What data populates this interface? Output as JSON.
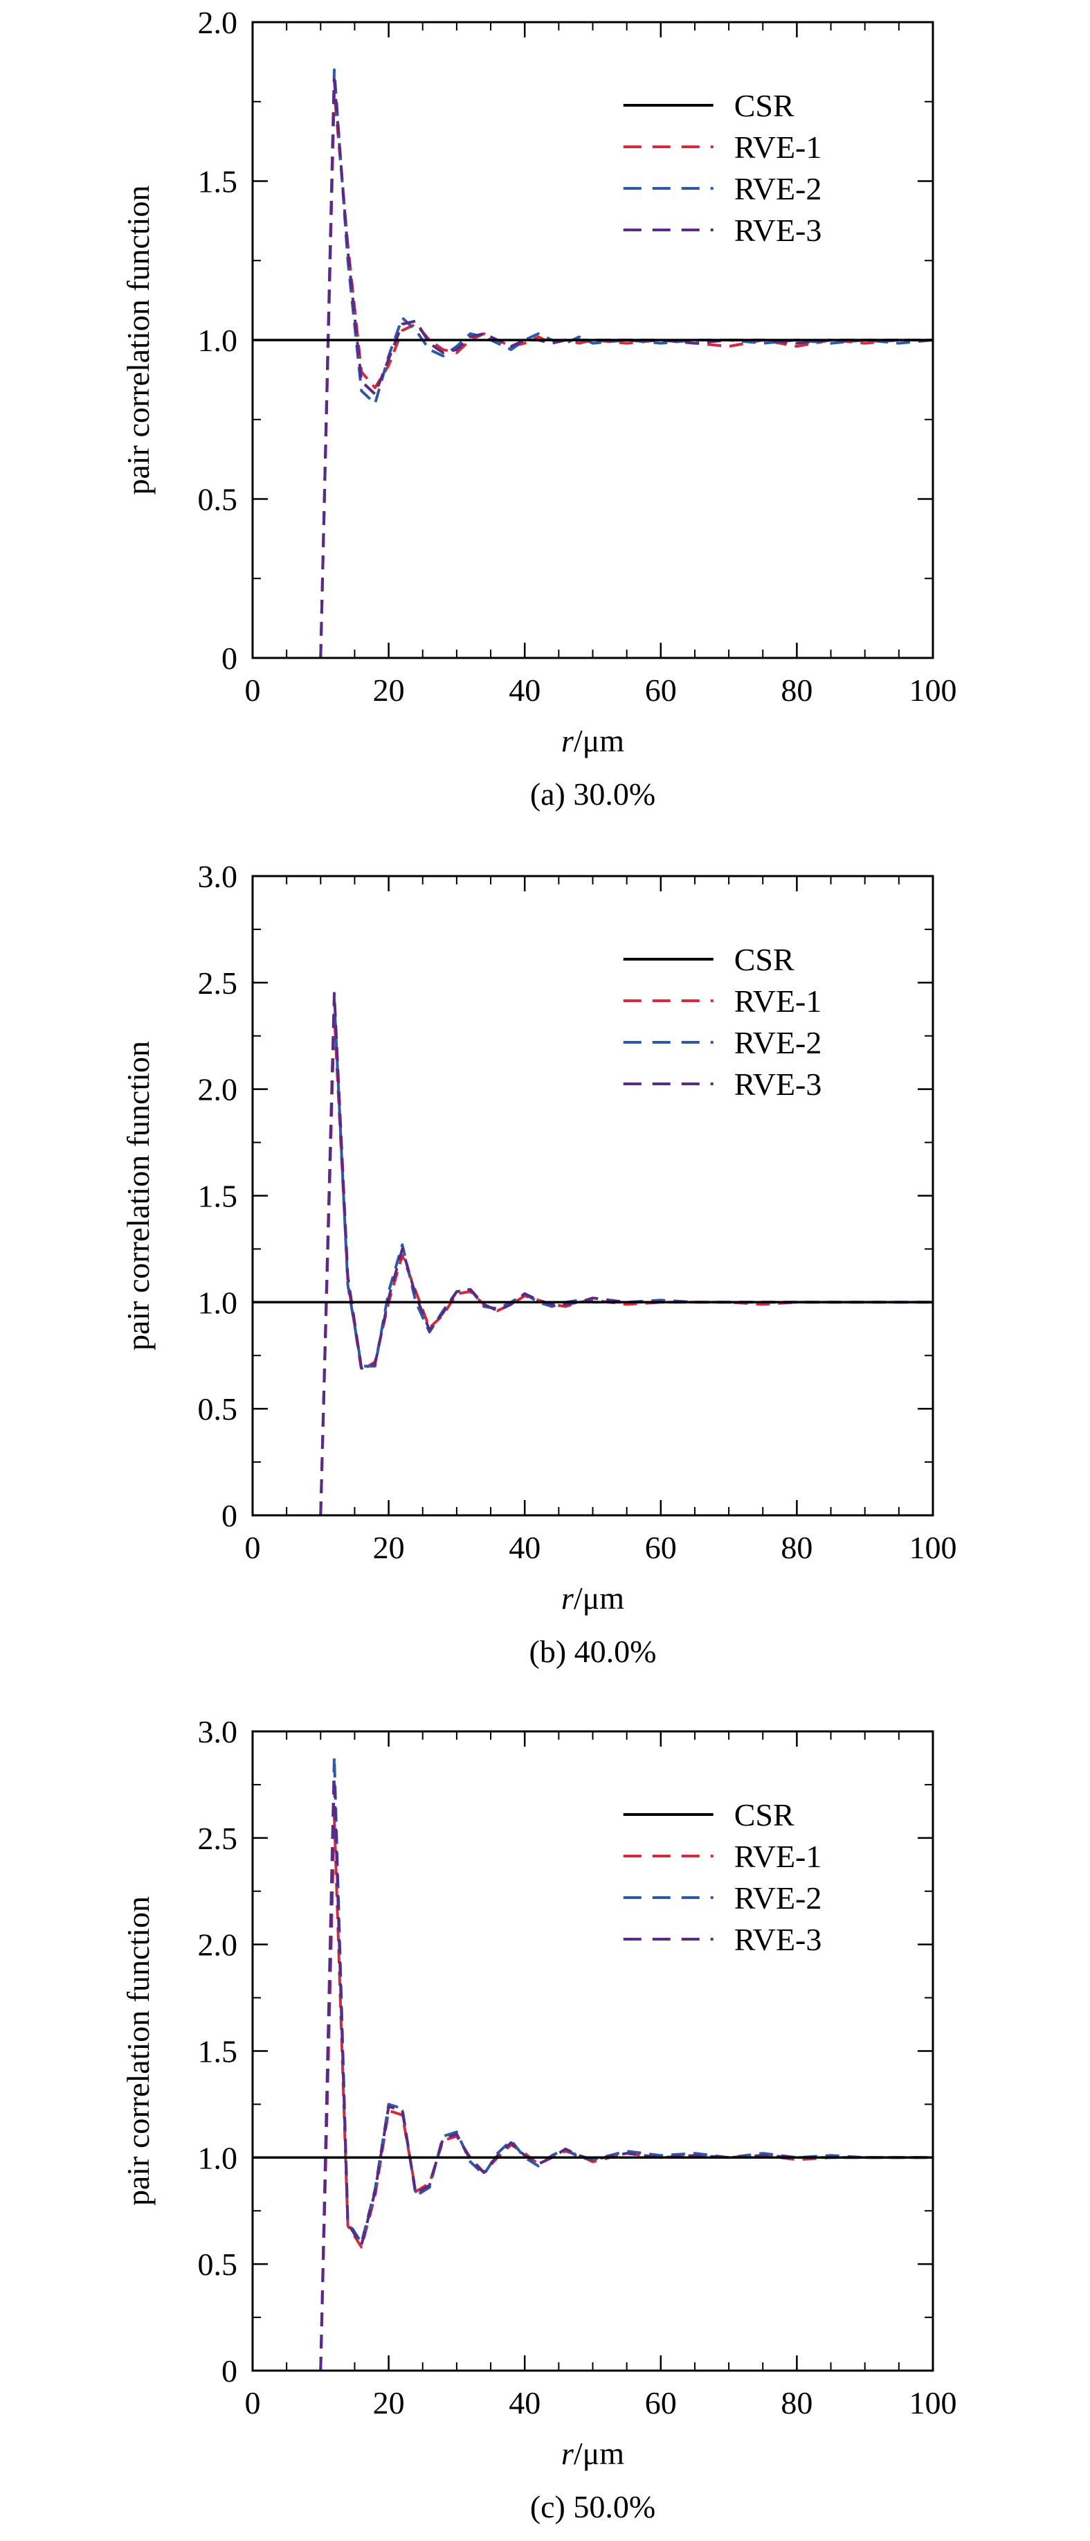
{
  "colors": {
    "csr": "#000000",
    "rve1": "#d42a3c",
    "rve2": "#2d5aa8",
    "rve3": "#5b2a86"
  },
  "chart_data": [
    {
      "type": "line",
      "caption": "(a) 30.0%",
      "xlabel": "r/μm",
      "ylabel": "pair correlation function",
      "xlim": [
        0,
        100
      ],
      "ylim": [
        0,
        2.0
      ],
      "x_ticks": [
        0,
        20,
        40,
        60,
        80,
        100
      ],
      "x_tick_labels": [
        "0",
        "20",
        "40",
        "60",
        "80",
        "100"
      ],
      "y_ticks": [
        0,
        0.5,
        1.0,
        1.5,
        2.0
      ],
      "y_tick_labels": [
        "0",
        "0.5",
        "1.0",
        "1.5",
        "2.0"
      ],
      "legend_position": "top-right",
      "legend": [
        "CSR",
        "RVE-1",
        "RVE-2",
        "RVE-3"
      ],
      "series": [
        {
          "name": "CSR",
          "style": "solid",
          "x": [
            0,
            100
          ],
          "y": [
            1.0,
            1.0
          ]
        },
        {
          "name": "RVE-1",
          "style": "dashed",
          "x": [
            10,
            12,
            14,
            16,
            18,
            20,
            22,
            24,
            26,
            28,
            30,
            32,
            34,
            36,
            38,
            40,
            42,
            44,
            46,
            48,
            50,
            55,
            60,
            65,
            70,
            75,
            80,
            85,
            90,
            95,
            100
          ],
          "y": [
            0.0,
            1.78,
            1.3,
            0.9,
            0.85,
            0.92,
            1.03,
            1.05,
            1.0,
            0.97,
            0.96,
            1.0,
            1.02,
            1.0,
            0.98,
            0.99,
            1.01,
            0.99,
            1.0,
            0.99,
            1.0,
            0.99,
            1.0,
            0.99,
            0.98,
            1.0,
            0.98,
            1.0,
            0.99,
            1.0,
            1.0
          ]
        },
        {
          "name": "RVE-2",
          "style": "dashed",
          "x": [
            10,
            12,
            14,
            16,
            18,
            20,
            22,
            24,
            26,
            28,
            30,
            32,
            34,
            36,
            38,
            40,
            42,
            44,
            46,
            48,
            50,
            55,
            60,
            65,
            70,
            75,
            80,
            85,
            90,
            95,
            100
          ],
          "y": [
            0.0,
            1.85,
            1.25,
            0.84,
            0.8,
            0.95,
            1.07,
            1.03,
            0.97,
            0.95,
            0.98,
            1.02,
            1.01,
            0.99,
            0.97,
            1.0,
            1.02,
            1.0,
            0.99,
            1.01,
            0.99,
            1.0,
            0.99,
            1.0,
            1.0,
            0.99,
            1.0,
            0.99,
            1.0,
            0.99,
            1.0
          ]
        },
        {
          "name": "RVE-3",
          "style": "dashed",
          "x": [
            10,
            12,
            14,
            16,
            18,
            20,
            22,
            24,
            26,
            28,
            30,
            32,
            34,
            36,
            38,
            40,
            42,
            44,
            46,
            48,
            50,
            55,
            60,
            65,
            70,
            75,
            80,
            85,
            90,
            95,
            100
          ],
          "y": [
            0.0,
            1.82,
            1.28,
            0.87,
            0.83,
            0.94,
            1.05,
            1.06,
            0.99,
            0.96,
            0.97,
            1.01,
            1.02,
            1.0,
            0.98,
            1.0,
            1.0,
            0.99,
            1.0,
            1.0,
            1.0,
            1.0,
            1.0,
            0.99,
            1.0,
            1.0,
            0.99,
            1.0,
            1.0,
            1.0,
            1.0
          ]
        }
      ]
    },
    {
      "type": "line",
      "caption": "(b) 40.0%",
      "xlabel": "r/μm",
      "ylabel": "pair correlation function",
      "xlim": [
        0,
        100
      ],
      "ylim": [
        0,
        3.0
      ],
      "x_ticks": [
        0,
        20,
        40,
        60,
        80,
        100
      ],
      "x_tick_labels": [
        "0",
        "20",
        "40",
        "60",
        "80",
        "100"
      ],
      "y_ticks": [
        0,
        0.5,
        1.0,
        1.5,
        2.0,
        2.5,
        3.0
      ],
      "y_tick_labels": [
        "0",
        "0.5",
        "1.0",
        "1.5",
        "2.0",
        "2.5",
        "3.0"
      ],
      "legend_position": "top-right",
      "legend": [
        "CSR",
        "RVE-1",
        "RVE-2",
        "RVE-3"
      ],
      "series": [
        {
          "name": "CSR",
          "style": "solid",
          "x": [
            0,
            100
          ],
          "y": [
            1.0,
            1.0
          ]
        },
        {
          "name": "RVE-1",
          "style": "dashed",
          "x": [
            10,
            12,
            14,
            16,
            18,
            20,
            22,
            24,
            26,
            28,
            30,
            32,
            34,
            36,
            38,
            40,
            42,
            44,
            46,
            48,
            50,
            55,
            60,
            65,
            70,
            75,
            80,
            85,
            90,
            95,
            100
          ],
          "y": [
            0.0,
            2.35,
            1.1,
            0.68,
            0.72,
            1.0,
            1.22,
            1.05,
            0.88,
            0.94,
            1.04,
            1.05,
            0.99,
            0.96,
            0.99,
            1.03,
            1.01,
            0.99,
            0.98,
            1.0,
            1.01,
            0.99,
            1.0,
            1.0,
            1.0,
            0.99,
            1.0,
            1.0,
            1.0,
            1.0,
            1.0
          ]
        },
        {
          "name": "RVE-2",
          "style": "dashed",
          "x": [
            10,
            12,
            14,
            16,
            18,
            20,
            22,
            24,
            26,
            28,
            30,
            32,
            34,
            36,
            38,
            40,
            42,
            44,
            46,
            48,
            50,
            55,
            60,
            65,
            70,
            75,
            80,
            85,
            90,
            95,
            100
          ],
          "y": [
            0.0,
            2.42,
            1.08,
            0.7,
            0.7,
            1.05,
            1.27,
            1.0,
            0.86,
            0.96,
            1.05,
            1.06,
            0.98,
            0.97,
            1.0,
            1.04,
            1.0,
            0.98,
            1.0,
            1.01,
            1.0,
            1.0,
            1.01,
            1.0,
            1.0,
            1.0,
            1.0,
            1.0,
            1.0,
            1.0,
            1.0
          ]
        },
        {
          "name": "RVE-3",
          "style": "dashed",
          "x": [
            10,
            12,
            14,
            16,
            18,
            20,
            22,
            24,
            26,
            28,
            30,
            32,
            34,
            36,
            38,
            40,
            42,
            44,
            46,
            48,
            50,
            55,
            60,
            65,
            70,
            75,
            80,
            85,
            90,
            95,
            100
          ],
          "y": [
            0.0,
            2.45,
            1.12,
            0.69,
            0.71,
            1.02,
            1.25,
            1.03,
            0.87,
            0.95,
            1.05,
            1.06,
            0.99,
            0.96,
            0.99,
            1.04,
            1.01,
            0.99,
            0.99,
            1.0,
            1.02,
            1.0,
            1.0,
            1.0,
            1.0,
            1.0,
            1.0,
            1.0,
            1.0,
            1.0,
            1.0
          ]
        }
      ]
    },
    {
      "type": "line",
      "caption": "(c) 50.0%",
      "xlabel": "r/μm",
      "ylabel": "pair correlation function",
      "xlim": [
        0,
        100
      ],
      "ylim": [
        0,
        3.0
      ],
      "x_ticks": [
        0,
        20,
        40,
        60,
        80,
        100
      ],
      "x_tick_labels": [
        "0",
        "20",
        "40",
        "60",
        "80",
        "100"
      ],
      "y_ticks": [
        0,
        0.5,
        1.0,
        1.5,
        2.0,
        2.5,
        3.0
      ],
      "y_tick_labels": [
        "0",
        "0.5",
        "1.0",
        "1.5",
        "2.0",
        "2.5",
        "3.0"
      ],
      "legend_position": "top-right",
      "legend": [
        "CSR",
        "RVE-1",
        "RVE-2",
        "RVE-3"
      ],
      "series": [
        {
          "name": "CSR",
          "style": "solid",
          "x": [
            0,
            100
          ],
          "y": [
            1.0,
            1.0
          ]
        },
        {
          "name": "RVE-1",
          "style": "dashed",
          "x": [
            10,
            12,
            14,
            16,
            18,
            20,
            22,
            24,
            26,
            28,
            30,
            32,
            34,
            36,
            38,
            40,
            42,
            44,
            46,
            48,
            50,
            55,
            60,
            65,
            70,
            75,
            80,
            85,
            90,
            95,
            100
          ],
          "y": [
            0.0,
            2.6,
            0.68,
            0.58,
            0.82,
            1.22,
            1.2,
            0.84,
            0.88,
            1.08,
            1.1,
            1.0,
            0.93,
            1.0,
            1.06,
            1.02,
            0.97,
            1.0,
            1.03,
            1.01,
            0.98,
            1.02,
            1.0,
            1.01,
            1.0,
            1.01,
            0.99,
            1.0,
            1.0,
            1.0,
            1.0
          ]
        },
        {
          "name": "RVE-2",
          "style": "dashed",
          "x": [
            10,
            12,
            14,
            16,
            18,
            20,
            22,
            24,
            26,
            28,
            30,
            32,
            34,
            36,
            38,
            40,
            42,
            44,
            46,
            48,
            50,
            55,
            60,
            65,
            70,
            75,
            80,
            85,
            90,
            95,
            100
          ],
          "y": [
            0.0,
            2.88,
            0.7,
            0.6,
            0.85,
            1.25,
            1.23,
            0.82,
            0.86,
            1.1,
            1.12,
            0.98,
            0.92,
            1.02,
            1.08,
            1.0,
            0.96,
            1.01,
            1.04,
            1.0,
            0.99,
            1.03,
            1.01,
            1.02,
            1.0,
            1.02,
            1.0,
            1.01,
            1.0,
            1.0,
            1.0
          ]
        },
        {
          "name": "RVE-3",
          "style": "dashed",
          "x": [
            10,
            12,
            14,
            16,
            18,
            20,
            22,
            24,
            26,
            28,
            30,
            32,
            34,
            36,
            38,
            40,
            42,
            44,
            46,
            48,
            50,
            55,
            60,
            65,
            70,
            75,
            80,
            85,
            90,
            95,
            100
          ],
          "y": [
            0.0,
            2.78,
            0.69,
            0.59,
            0.84,
            1.24,
            1.22,
            0.83,
            0.87,
            1.09,
            1.11,
            0.99,
            0.93,
            1.01,
            1.07,
            1.01,
            0.97,
            1.0,
            1.04,
            1.01,
            0.99,
            1.02,
            1.0,
            1.01,
            1.0,
            1.01,
            1.0,
            1.0,
            1.0,
            1.0,
            1.0
          ]
        }
      ]
    }
  ]
}
